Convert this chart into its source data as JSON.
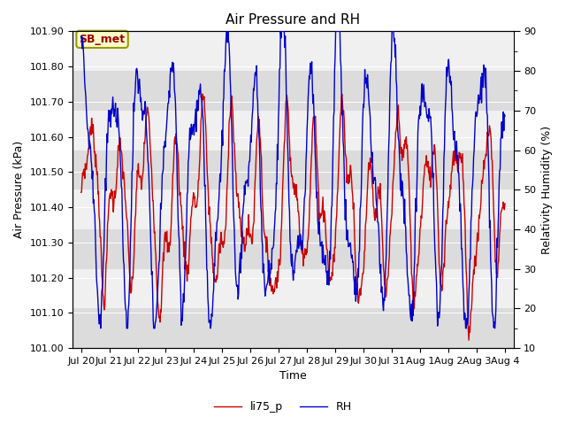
{
  "title": "Air Pressure and RH",
  "xlabel": "Time",
  "ylabel_left": "Air Pressure (kPa)",
  "ylabel_right": "Relativity Humidity (%)",
  "ylim_left": [
    101.0,
    101.9
  ],
  "ylim_right": [
    10,
    90
  ],
  "yticks_left": [
    101.0,
    101.1,
    101.2,
    101.3,
    101.4,
    101.5,
    101.6,
    101.7,
    101.8,
    101.9
  ],
  "yticks_right": [
    10,
    20,
    30,
    40,
    50,
    60,
    70,
    80,
    90
  ],
  "color_pressure": "#cc0000",
  "color_rh": "#0000cc",
  "legend_label_pressure": "li75_p",
  "legend_label_rh": "RH",
  "annotation_text": "SB_met",
  "annotation_color_text": "#990000",
  "annotation_bg": "#ffffcc",
  "annotation_border": "#999900",
  "bg_color": "#ffffff",
  "plot_bg_light": "#f0f0f0",
  "plot_bg_dark": "#dcdcdc",
  "grid_color": "#ffffff",
  "title_fontsize": 11,
  "axis_fontsize": 9,
  "tick_fontsize": 8,
  "band_rh_boundaries": [
    10,
    20,
    30,
    40,
    50,
    60,
    70,
    80,
    90
  ],
  "day_labels": [
    "Jul 20",
    "Jul 21",
    "Jul 22",
    "Jul 23",
    "Jul 24",
    "Jul 25",
    "Jul 26",
    "Jul 27",
    "Jul 28",
    "Jul 29",
    "Jul 30",
    "Jul 31",
    "Aug 1",
    "Aug 2",
    "Aug 3",
    "Aug 4"
  ]
}
